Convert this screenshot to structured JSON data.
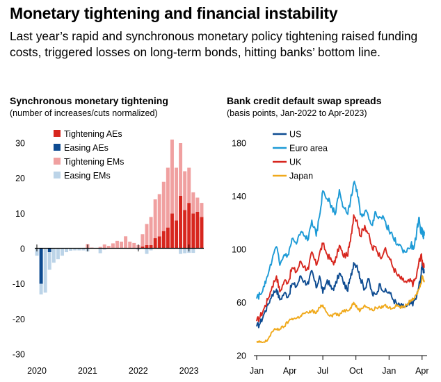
{
  "title": "Monetary tightening and financial instability",
  "subtitle": "Last year’s rapid and synchronous monetary policy tightening raised funding costs, triggered losses on long-term bonds, hitting banks’ bottom line.",
  "chart_data": [
    {
      "type": "bar",
      "title": "Synchronous monetary tightening",
      "subtitle": "(number of increases/cuts normalized)",
      "ylim": [
        -30,
        30
      ],
      "yticks": [
        "30",
        "20",
        "10",
        "0",
        "-10",
        "-20",
        "-30"
      ],
      "xticks": [
        "2020",
        "2021",
        "2022",
        "2023"
      ],
      "legend": [
        "Tightening AEs",
        "Easing AEs",
        "Tightening EMs",
        "Easing EMs"
      ],
      "colors": {
        "tightening_aes": "#d7261e",
        "easing_aes": "#0d4b91",
        "tightening_ems": "#f0a0a0",
        "easing_ems": "#bcd4e8"
      },
      "months": [
        "2020-01",
        "2020-02",
        "2020-03",
        "2020-04",
        "2020-05",
        "2020-06",
        "2020-07",
        "2020-08",
        "2020-09",
        "2020-10",
        "2020-11",
        "2020-12",
        "2021-01",
        "2021-02",
        "2021-03",
        "2021-04",
        "2021-05",
        "2021-06",
        "2021-07",
        "2021-08",
        "2021-09",
        "2021-10",
        "2021-11",
        "2021-12",
        "2022-01",
        "2022-02",
        "2022-03",
        "2022-04",
        "2022-05",
        "2022-06",
        "2022-07",
        "2022-08",
        "2022-09",
        "2022-10",
        "2022-11",
        "2022-12",
        "2023-01",
        "2023-02",
        "2023-03",
        "2023-04"
      ],
      "series": [
        {
          "name": "Tightening AEs",
          "values": [
            0,
            0,
            0,
            0,
            0,
            0,
            0,
            0,
            0,
            0,
            0,
            0,
            0,
            0,
            0,
            0,
            0,
            0,
            0,
            0,
            0,
            0,
            0,
            0,
            0,
            0.6,
            1.0,
            1.0,
            3.0,
            3.5,
            5.0,
            6.0,
            10.0,
            8.0,
            15.0,
            11.0,
            13.0,
            10.0,
            10.5,
            9.0
          ]
        },
        {
          "name": "Easing AEs",
          "values": [
            0,
            -10.0,
            0,
            -1.0,
            0,
            0,
            0,
            0,
            0,
            0,
            0,
            0,
            0,
            0,
            0,
            0,
            0,
            0,
            0,
            0,
            0,
            0,
            0,
            0,
            0,
            0,
            0,
            0,
            0,
            0,
            0,
            0,
            0,
            0,
            0,
            0,
            0,
            0,
            0,
            0
          ]
        },
        {
          "name": "Tightening EMs",
          "values": [
            0,
            0,
            0,
            0,
            0,
            0,
            0,
            0,
            0,
            0,
            0,
            0.2,
            1.3,
            0.3,
            0.2,
            0.5,
            1.2,
            0.8,
            1.5,
            2.2,
            2.0,
            3.5,
            2.0,
            1.6,
            1.0,
            3.5,
            6.0,
            8.0,
            11.0,
            12.0,
            14.0,
            17.0,
            21.0,
            15.0,
            15.0,
            11.0,
            10.0,
            6.0,
            4.0,
            4.0
          ]
        },
        {
          "name": "Easing EMs",
          "values": [
            -2.0,
            -3.0,
            -12.5,
            -5.0,
            -4.0,
            -3.0,
            -2.0,
            -1.0,
            -0.6,
            -0.5,
            -0.5,
            -0.5,
            -0.8,
            0,
            0,
            -1.3,
            -0.3,
            0,
            0,
            0,
            0,
            0,
            0,
            0,
            -0.3,
            0,
            -1.5,
            -0.5,
            0,
            0,
            0,
            0,
            0,
            0,
            -1.5,
            -1.3,
            -1.2,
            -1.2,
            0,
            0
          ]
        }
      ]
    },
    {
      "type": "line",
      "title": "Bank credit default swap spreads",
      "subtitle": "(basis points, Jan-2022 to Apr-2023)",
      "ylim": [
        20,
        180
      ],
      "yticks": [
        "180",
        "140",
        "100",
        "60",
        "20"
      ],
      "xlim": [
        0,
        15.2
      ],
      "xticks": [
        {
          "label": "Jan",
          "x": 0
        },
        {
          "label": "Apr",
          "x": 3
        },
        {
          "label": "Jul",
          "x": 6
        },
        {
          "label": "Oct",
          "x": 9
        },
        {
          "label": "Jan",
          "x": 12
        },
        {
          "label": "Apr",
          "x": 15
        }
      ],
      "legend": [
        "US",
        "Euro area",
        "UK",
        "Japan"
      ],
      "series": [
        {
          "name": "US",
          "color": "#0d4b91",
          "x": [
            0,
            0.3,
            0.7,
            1.0,
            1.4,
            1.8,
            2.1,
            2.5,
            2.9,
            3.2,
            3.6,
            4.0,
            4.3,
            4.7,
            5.0,
            5.4,
            5.7,
            6.0,
            6.4,
            6.8,
            7.1,
            7.5,
            7.8,
            8.2,
            8.5,
            8.8,
            9.1,
            9.4,
            9.8,
            10.1,
            10.5,
            10.8,
            11.2,
            11.6,
            12.0,
            12.4,
            12.8,
            13.2,
            13.6,
            14.0,
            14.2,
            14.5,
            14.7,
            14.9,
            15.0,
            15.1,
            15.2
          ],
          "y": [
            42,
            44,
            52,
            58,
            66,
            70,
            62,
            67,
            65,
            74,
            72,
            80,
            76,
            74,
            84,
            71,
            80,
            67,
            77,
            70,
            72,
            82,
            77,
            69,
            78,
            90,
            88,
            78,
            70,
            78,
            66,
            66,
            74,
            68,
            68,
            62,
            58,
            57,
            57,
            59,
            60,
            64,
            72,
            80,
            90,
            84,
            82
          ]
        },
        {
          "name": "Euro area",
          "color": "#1c9ad6",
          "x": [
            0,
            0.3,
            0.7,
            1.0,
            1.4,
            1.8,
            2.1,
            2.5,
            2.9,
            3.2,
            3.6,
            4.0,
            4.3,
            4.7,
            5.0,
            5.4,
            5.7,
            6.0,
            6.4,
            6.8,
            7.1,
            7.5,
            7.8,
            8.2,
            8.5,
            8.8,
            9.1,
            9.4,
            9.8,
            10.1,
            10.5,
            10.8,
            11.2,
            11.6,
            12.0,
            12.4,
            12.8,
            13.2,
            13.6,
            14.0,
            14.2,
            14.5,
            14.7,
            14.9,
            15.0,
            15.1,
            15.2
          ],
          "y": [
            63,
            66,
            72,
            80,
            92,
            102,
            88,
            96,
            96,
            108,
            104,
            113,
            110,
            108,
            122,
            110,
            125,
            144,
            138,
            133,
            126,
            145,
            132,
            127,
            136,
            150,
            145,
            126,
            128,
            126,
            118,
            128,
            124,
            122,
            114,
            108,
            104,
            100,
            98,
            104,
            100,
            112,
            124,
            112,
            116,
            110,
            113
          ]
        },
        {
          "name": "UK",
          "color": "#d7261e",
          "x": [
            0,
            0.3,
            0.7,
            1.0,
            1.4,
            1.8,
            2.1,
            2.5,
            2.9,
            3.2,
            3.6,
            4.0,
            4.3,
            4.7,
            5.0,
            5.4,
            5.7,
            6.0,
            6.4,
            6.8,
            7.1,
            7.5,
            7.8,
            8.2,
            8.5,
            8.8,
            9.1,
            9.4,
            9.8,
            10.1,
            10.5,
            10.8,
            11.2,
            11.6,
            12.0,
            12.4,
            12.8,
            13.2,
            13.6,
            14.0,
            14.2,
            14.5,
            14.7,
            14.9,
            15.0,
            15.1,
            15.2
          ],
          "y": [
            46,
            49,
            56,
            62,
            72,
            80,
            68,
            76,
            76,
            86,
            83,
            91,
            87,
            85,
            98,
            88,
            97,
            104,
            96,
            91,
            90,
            103,
            96,
            95,
            106,
            126,
            122,
            110,
            118,
            112,
            100,
            102,
            94,
            100,
            94,
            86,
            80,
            77,
            75,
            76,
            74,
            80,
            90,
            96,
            92,
            88,
            86
          ]
        },
        {
          "name": "Japan",
          "color": "#f0a91b",
          "x": [
            0,
            0.3,
            0.7,
            1.0,
            1.4,
            1.8,
            2.1,
            2.5,
            2.9,
            3.2,
            3.6,
            4.0,
            4.3,
            4.7,
            5.0,
            5.4,
            5.7,
            6.0,
            6.4,
            6.8,
            7.1,
            7.5,
            7.8,
            8.2,
            8.5,
            8.8,
            9.1,
            9.4,
            9.8,
            10.1,
            10.5,
            10.8,
            11.2,
            11.6,
            12.0,
            12.4,
            12.8,
            13.2,
            13.6,
            14.0,
            14.2,
            14.5,
            14.7,
            14.9,
            15.0,
            15.1,
            15.2
          ],
          "y": [
            30,
            30,
            30,
            32,
            38,
            40,
            40,
            42,
            46,
            48,
            48,
            50,
            52,
            52,
            54,
            52,
            56,
            58,
            52,
            50,
            52,
            50,
            54,
            54,
            56,
            60,
            56,
            54,
            58,
            56,
            54,
            56,
            56,
            58,
            56,
            56,
            58,
            56,
            58,
            62,
            62,
            66,
            70,
            74,
            80,
            78,
            76
          ]
        }
      ]
    }
  ]
}
